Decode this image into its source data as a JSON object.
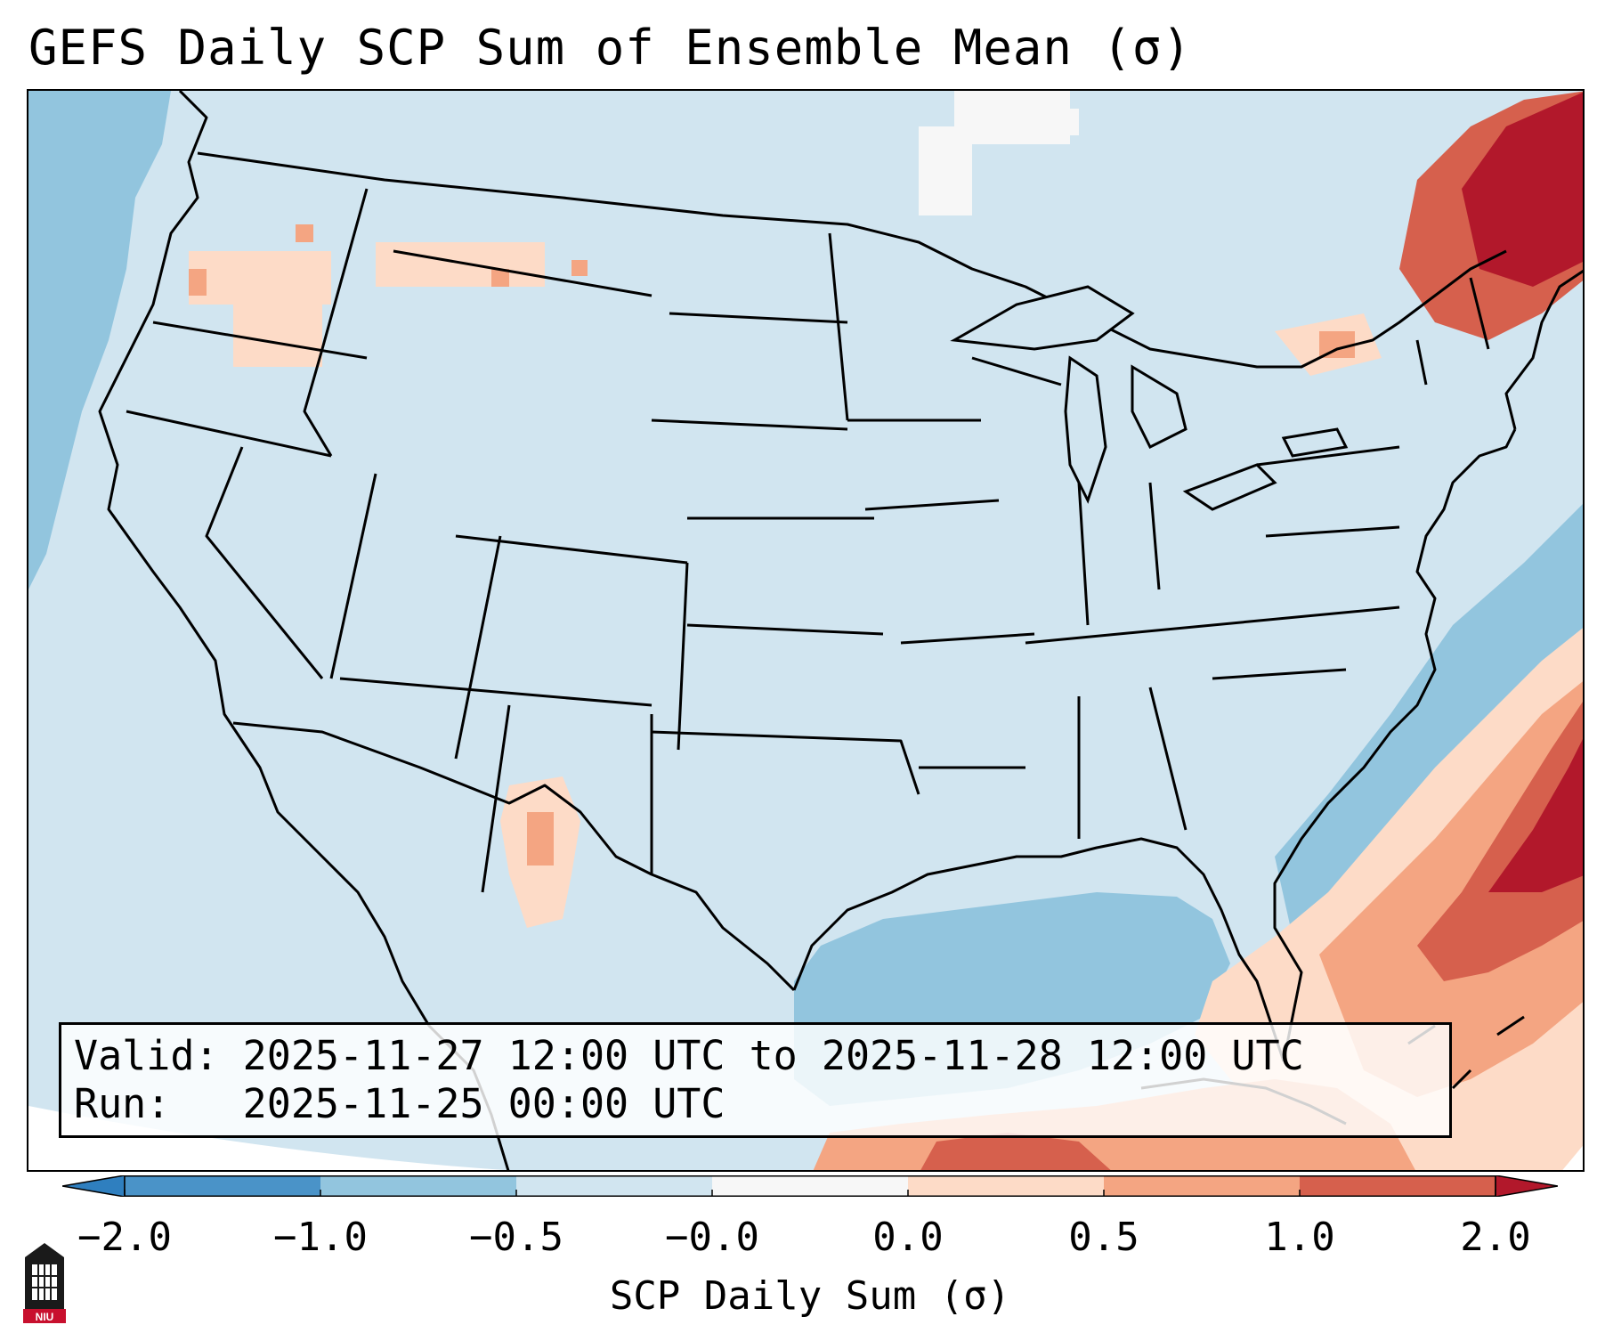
{
  "title": "GEFS Daily SCP Sum of Ensemble Mean (σ)",
  "info": {
    "valid_line": "Valid: 2025-11-27 12:00 UTC to 2025-11-28 12:00 UTC",
    "run_line": "Run:   2025-11-25 00:00 UTC"
  },
  "colorbar": {
    "label": "SCP Daily Sum (σ)",
    "ticks": [
      "−2.0",
      "−1.0",
      "−0.5",
      "−0.0",
      "0.0",
      "0.5",
      "1.0",
      "2.0"
    ],
    "bins": [
      {
        "range": "< -2.0",
        "color": "#2f7fbf"
      },
      {
        "range": "-2.0 to -1.0",
        "color": "#4a93c8"
      },
      {
        "range": "-1.0 to -0.5",
        "color": "#92c5de"
      },
      {
        "range": "-0.5 to -0.0",
        "color": "#d1e5f0"
      },
      {
        "range": "-0.0 to 0.0",
        "color": "#f7f7f7"
      },
      {
        "range": "0.0 to 0.5",
        "color": "#fddbc7"
      },
      {
        "range": "0.5 to 1.0",
        "color": "#f4a582"
      },
      {
        "range": "1.0 to 2.0",
        "color": "#d6604d"
      },
      {
        "range": "> 2.0",
        "color": "#b2182b"
      }
    ]
  },
  "map": {
    "region": "CONUS",
    "background_value_color": "#d1e5f0"
  },
  "logo": {
    "text": "NIU",
    "color": "#c8102e"
  }
}
